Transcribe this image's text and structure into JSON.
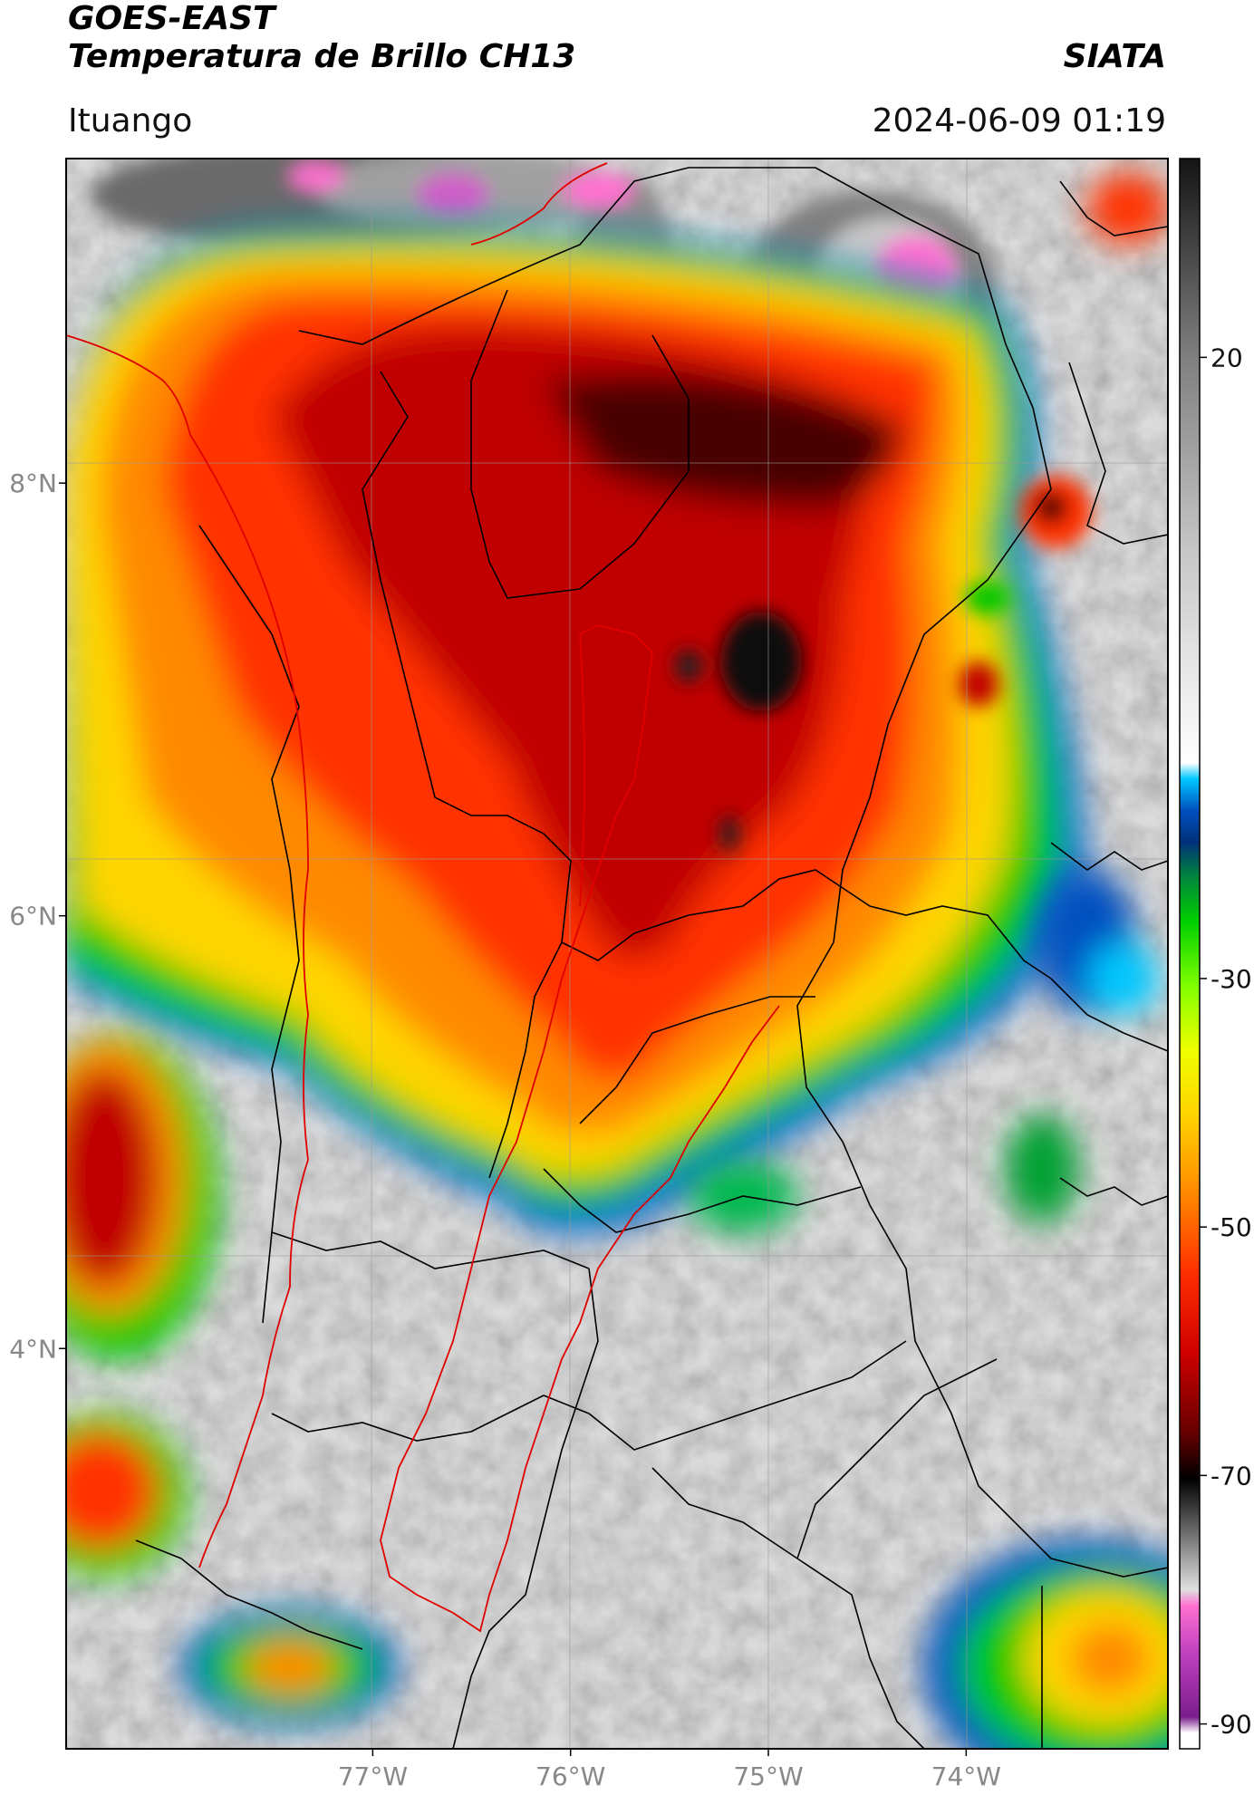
{
  "header": {
    "title_line1": "GOES-EAST",
    "title_line2": "Temperatura de Brillo CH13",
    "brand": "SIATA",
    "region": "Ituango",
    "datetime": "2024-06-09 01:19"
  },
  "map": {
    "lat_range": [
      2.15,
      9.5
    ],
    "lon_range": [
      -78.55,
      -72.98
    ],
    "lat_ticks": [
      {
        "value": 8,
        "label": "8°N"
      },
      {
        "value": 6,
        "label": "6°N"
      },
      {
        "value": 4,
        "label": "4°N"
      }
    ],
    "lon_ticks": [
      {
        "value": -77,
        "label": "77°W"
      },
      {
        "value": -76,
        "label": "76°W"
      },
      {
        "value": -75,
        "label": "75°W"
      },
      {
        "value": -74,
        "label": "74°W"
      }
    ],
    "grid": true,
    "ituango_outline_color": "#e00000",
    "boundary_color": "#000000"
  },
  "colorbar": {
    "range": [
      -92,
      36
    ],
    "ticks": [
      {
        "value": 20,
        "label": "20"
      },
      {
        "value": -30,
        "label": "-30"
      },
      {
        "value": -50,
        "label": "-50"
      },
      {
        "value": -70,
        "label": "-70"
      },
      {
        "value": -90,
        "label": "-90"
      }
    ]
  }
}
